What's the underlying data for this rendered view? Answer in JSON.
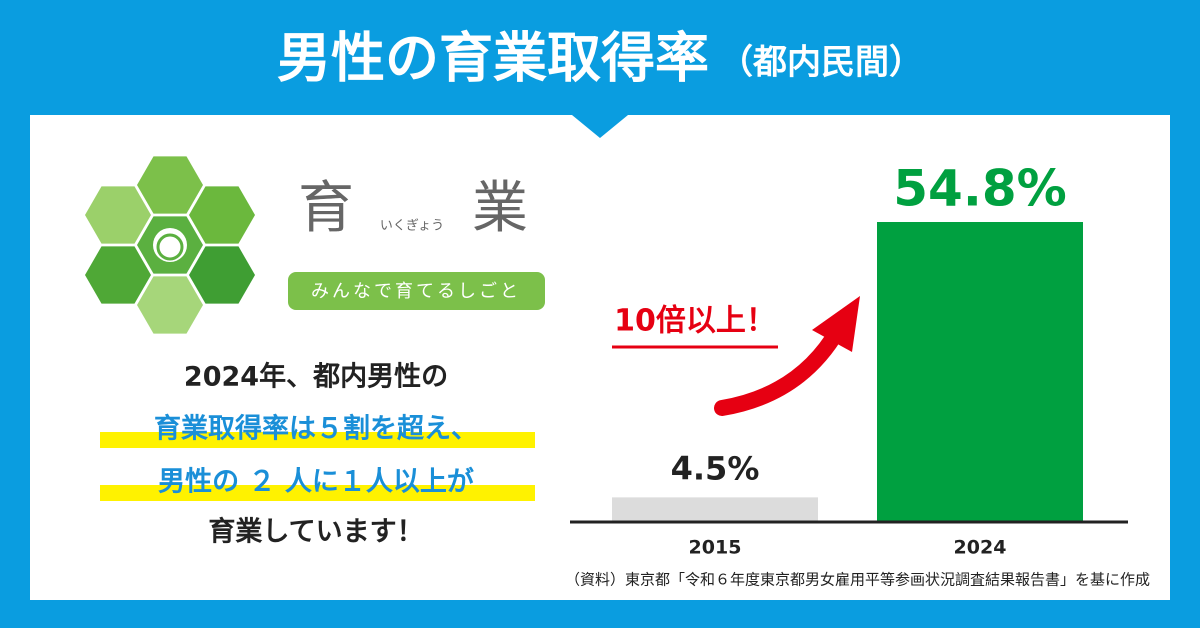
{
  "header": {
    "title": "男性の育業取得率",
    "title_note": "（都内民間）"
  },
  "logo": {
    "char1": "育",
    "char2": "業",
    "reading": "いくぎょう",
    "tagline": "みんなで育てるしごと"
  },
  "message": {
    "lines": [
      "2024年、都内男性の",
      "育業取得率は５割を超え、",
      "男性の ２ 人に１人以上が",
      "育業しています！"
    ]
  },
  "chart_data": {
    "type": "bar",
    "categories": [
      "2015",
      "2024"
    ],
    "values": [
      4.5,
      54.8
    ],
    "value_labels": [
      "4.5%",
      "54.8%"
    ],
    "colors": [
      "#dcdcdc",
      "#00a040"
    ],
    "annotation": "10倍以上！"
  },
  "source": "（資料）東京都「令和６年度東京都男女雇用平等参画状況調査結果報告書」を基に作成"
}
